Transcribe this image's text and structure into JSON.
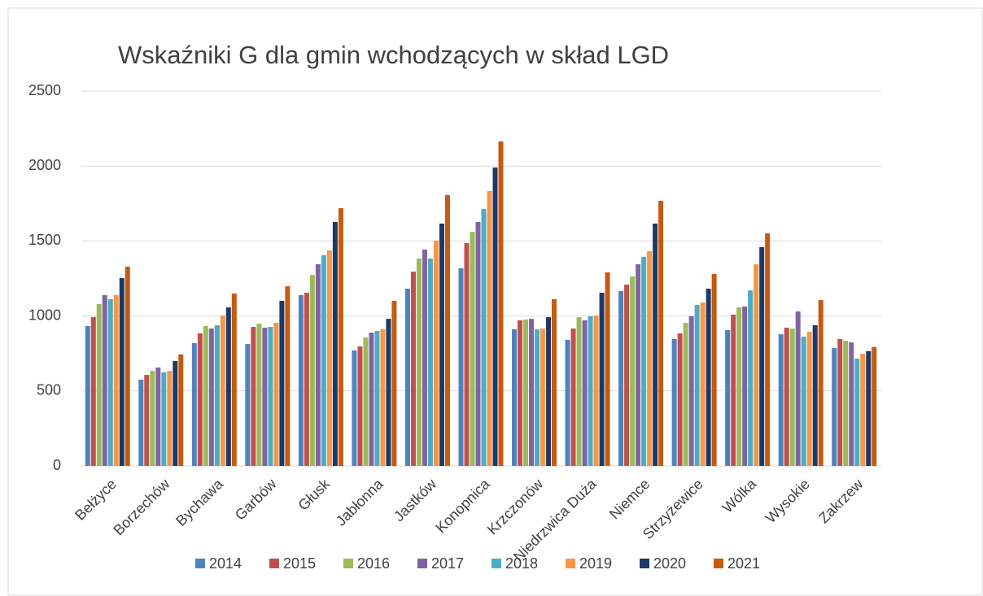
{
  "chart_data": {
    "type": "bar",
    "title": "Wskaźniki G dla gmin wchodzących w skład LGD",
    "categories": [
      "Bełżyce",
      "Borzechów",
      "Bychawa",
      "Garbów",
      "Głusk",
      "Jabłonna",
      "Jastków",
      "Konopnica",
      "Krzczonów",
      "Niedrzwica Duża",
      "Niemce",
      "Strzyżewice",
      "Wólka",
      "Wysokie",
      "Zakrzew"
    ],
    "series": [
      {
        "name": "2014",
        "color": "#4f81bd",
        "values": [
          933,
          575,
          819,
          813,
          1139,
          770,
          1182,
          1318,
          911,
          841,
          1166,
          846,
          906,
          878,
          786
        ]
      },
      {
        "name": "2015",
        "color": "#c0504d",
        "values": [
          992,
          607,
          884,
          927,
          1155,
          797,
          1296,
          1486,
          971,
          916,
          1209,
          884,
          1009,
          922,
          846
        ]
      },
      {
        "name": "2016",
        "color": "#9bbb59",
        "values": [
          1079,
          634,
          933,
          949,
          1274,
          857,
          1383,
          1562,
          976,
          992,
          1264,
          954,
          1057,
          916,
          835
        ]
      },
      {
        "name": "2017",
        "color": "#8064a2",
        "values": [
          1139,
          656,
          916,
          922,
          1345,
          889,
          1443,
          1627,
          981,
          971,
          1345,
          998,
          1063,
          1030,
          824
        ]
      },
      {
        "name": "2018",
        "color": "#4bacc6",
        "values": [
          1112,
          624,
          938,
          927,
          1405,
          900,
          1383,
          1714,
          911,
          998,
          1394,
          1074,
          1171,
          862,
          716
        ]
      },
      {
        "name": "2019",
        "color": "#f79646",
        "values": [
          1139,
          634,
          1003,
          954,
          1437,
          911,
          1502,
          1833,
          916,
          1003,
          1432,
          1090,
          1345,
          895,
          748
        ]
      },
      {
        "name": "2020",
        "color": "#1f3864",
        "values": [
          1253,
          700,
          1057,
          1101,
          1627,
          981,
          1616,
          1990,
          992,
          1155,
          1616,
          1182,
          1459,
          938,
          765
        ]
      },
      {
        "name": "2021",
        "color": "#c55a11",
        "values": [
          1329,
          743,
          1150,
          1198,
          1719,
          1101,
          1806,
          2164,
          1112,
          1291,
          1768,
          1280,
          1551,
          1106,
          792
        ]
      }
    ],
    "ylim": [
      0,
      2500
    ],
    "yticks": [
      0,
      500,
      1000,
      1500,
      2000,
      2500
    ],
    "grid": true,
    "legend": "bottom"
  }
}
